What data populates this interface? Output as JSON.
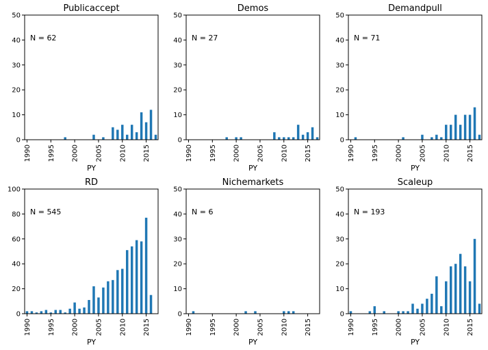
{
  "chart_data": [
    {
      "type": "bar",
      "title": "Publicaccept",
      "xlabel": "PY",
      "annotation": "N = 62",
      "ylim": [
        0,
        50
      ],
      "yticks": [
        0,
        10,
        20,
        30,
        40,
        50
      ],
      "xlim": [
        1989.5,
        2017.5
      ],
      "xticks": [
        "1990",
        "1995",
        "2000",
        "2005",
        "2010",
        "2015"
      ],
      "x": [
        1998,
        2004,
        2006,
        2008,
        2009,
        2010,
        2011,
        2012,
        2013,
        2014,
        2015,
        2016,
        2017
      ],
      "values": [
        1,
        2,
        1,
        5,
        4,
        6,
        2,
        6,
        3,
        11,
        7,
        12,
        2
      ]
    },
    {
      "type": "bar",
      "title": "Demos",
      "xlabel": "PY",
      "annotation": "N = 27",
      "ylim": [
        0,
        50
      ],
      "yticks": [
        0,
        10,
        20,
        30,
        40,
        50
      ],
      "xlim": [
        1989.5,
        2017.5
      ],
      "xticks": [
        "1990",
        "1995",
        "2000",
        "2005",
        "2010",
        "2015"
      ],
      "x": [
        1998,
        2000,
        2001,
        2008,
        2009,
        2010,
        2011,
        2012,
        2013,
        2014,
        2015,
        2016,
        2017
      ],
      "values": [
        1,
        1,
        1,
        3,
        1,
        1,
        1,
        1,
        6,
        2,
        3,
        5,
        1
      ]
    },
    {
      "type": "bar",
      "title": "Demandpull",
      "xlabel": "PY",
      "annotation": "N = 71",
      "ylim": [
        0,
        50
      ],
      "yticks": [
        0,
        10,
        20,
        30,
        40,
        50
      ],
      "xlim": [
        1989.5,
        2017.5
      ],
      "xticks": [
        "1990",
        "1995",
        "2000",
        "2005",
        "2010",
        "2015"
      ],
      "x": [
        1991,
        2001,
        2005,
        2007,
        2008,
        2009,
        2010,
        2011,
        2012,
        2013,
        2014,
        2015,
        2016,
        2017
      ],
      "values": [
        1,
        1,
        2,
        1,
        2,
        1,
        6,
        6,
        10,
        6,
        10,
        10,
        13,
        2
      ]
    },
    {
      "type": "bar",
      "title": "RD",
      "xlabel": "PY",
      "annotation": "N = 545",
      "ylim": [
        0,
        100
      ],
      "yticks": [
        0,
        20,
        40,
        60,
        80,
        100
      ],
      "xlim": [
        1989.5,
        2017.5
      ],
      "xticks": [
        "1990",
        "1995",
        "2000",
        "2005",
        "2010",
        "2015"
      ],
      "x": [
        1990,
        1991,
        1992,
        1993,
        1994,
        1995,
        1996,
        1997,
        1998,
        1999,
        2000,
        2001,
        2002,
        2003,
        2004,
        2005,
        2006,
        2007,
        2008,
        2009,
        2010,
        2011,
        2012,
        2013,
        2014,
        2015,
        2016,
        2017
      ],
      "values": [
        2,
        2,
        1,
        2,
        3,
        1,
        3,
        3,
        1,
        4,
        9,
        4,
        5,
        11,
        22,
        13,
        21,
        26,
        27,
        35,
        36,
        51,
        54,
        59,
        58,
        77,
        15,
        0
      ]
    },
    {
      "type": "bar",
      "title": "Nichemarkets",
      "xlabel": "PY",
      "annotation": "N = 6",
      "ylim": [
        0,
        50
      ],
      "yticks": [
        0,
        10,
        20,
        30,
        40,
        50
      ],
      "xlim": [
        1989.5,
        2017.5
      ],
      "xticks": [
        "1990",
        "1995",
        "2000",
        "2005",
        "2010",
        "2015"
      ],
      "x": [
        1991,
        2002,
        2004,
        2010,
        2011,
        2012
      ],
      "values": [
        1,
        1,
        1,
        1,
        1,
        1
      ]
    },
    {
      "type": "bar",
      "title": "Scaleup",
      "xlabel": "PY",
      "annotation": "N = 193",
      "ylim": [
        0,
        50
      ],
      "yticks": [
        0,
        10,
        20,
        30,
        40,
        50
      ],
      "xlim": [
        1989.5,
        2017.5
      ],
      "xticks": [
        "1990",
        "1995",
        "2000",
        "2005",
        "2010",
        "2015"
      ],
      "x": [
        1990,
        1994,
        1995,
        1997,
        2000,
        2001,
        2002,
        2003,
        2004,
        2005,
        2006,
        2007,
        2008,
        2009,
        2010,
        2011,
        2012,
        2013,
        2014,
        2015,
        2016,
        2017
      ],
      "values": [
        1,
        1,
        3,
        1,
        1,
        1,
        1,
        4,
        2,
        4,
        6,
        8,
        15,
        3,
        13,
        19,
        20,
        24,
        19,
        13,
        30,
        4
      ]
    }
  ],
  "colors": {
    "bar": "#1f77b4"
  }
}
